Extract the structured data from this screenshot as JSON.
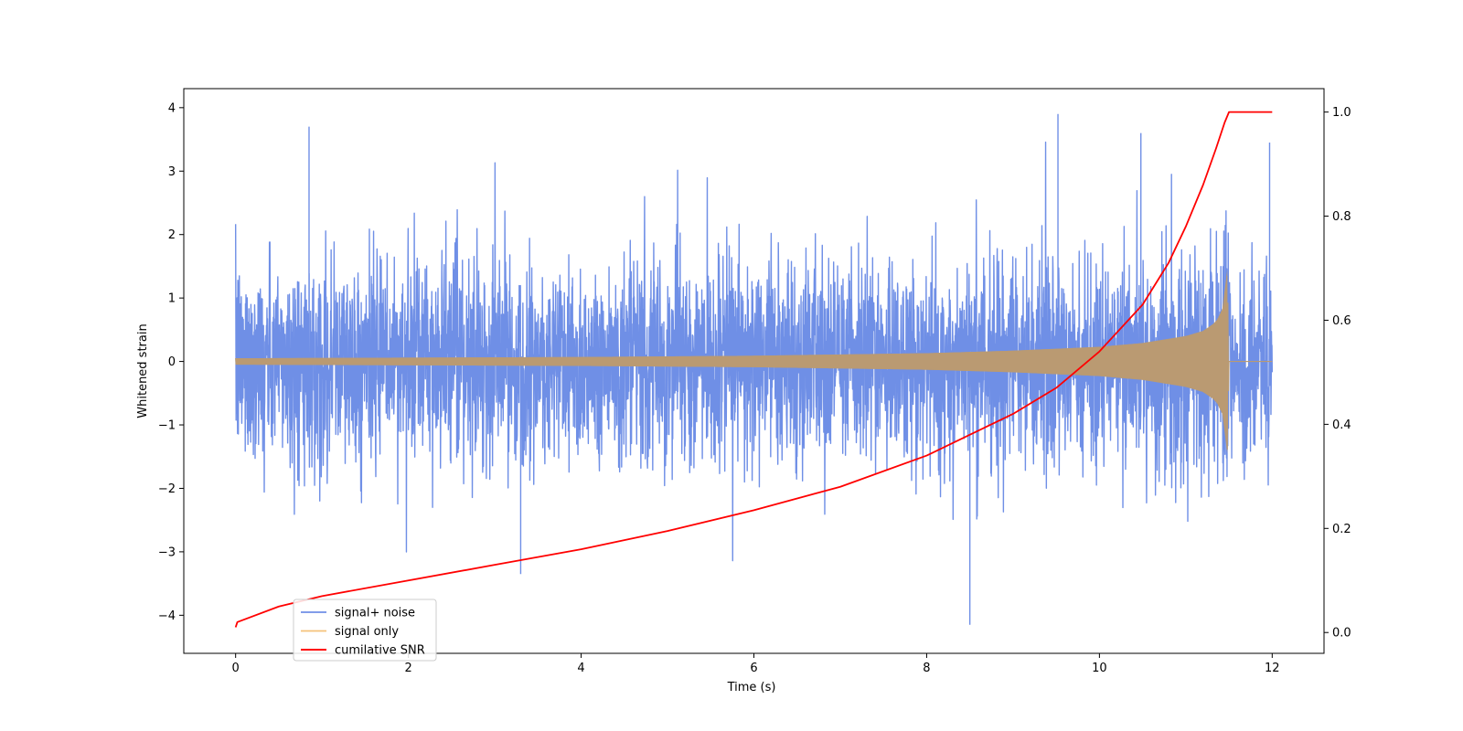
{
  "chart_data": {
    "type": "line",
    "xlabel": "Time (s)",
    "ylabel": "Whitened strain",
    "y2label": "",
    "xlim": [
      -0.6,
      12.6
    ],
    "ylim": [
      -4.6,
      4.3
    ],
    "y2lim": [
      -0.04,
      1.045
    ],
    "xticks": [
      0,
      2,
      4,
      6,
      8,
      10,
      12
    ],
    "yticks": [
      -4,
      -3,
      -2,
      -1,
      0,
      1,
      2,
      3,
      4
    ],
    "y2ticks": [
      0.0,
      0.2,
      0.4,
      0.6,
      0.8,
      1.0
    ],
    "xtick_labels": [
      "0",
      "2",
      "4",
      "6",
      "8",
      "10",
      "12"
    ],
    "ytick_labels": [
      "−4",
      "−3",
      "−2",
      "−1",
      "0",
      "1",
      "2",
      "3",
      "4"
    ],
    "y2tick_labels": [
      "0.0",
      "0.2",
      "0.4",
      "0.6",
      "0.8",
      "1.0"
    ],
    "grid": false,
    "legend_position": "lower-left",
    "series": [
      {
        "name": "signal+ noise",
        "axis": "left",
        "color": "#6f8fe6",
        "description_samples": "approx. unit-variance whitened noise spanning 0 to 12 s",
        "noise_sigma": 1.0,
        "peaks": [
          {
            "x": 0.85,
            "y": 3.7
          },
          {
            "x": 9.52,
            "y": 3.9
          },
          {
            "x": 8.5,
            "y": -4.15
          },
          {
            "x": 3.3,
            "y": -3.35
          },
          {
            "x": 10.48,
            "y": 3.6
          },
          {
            "x": 11.97,
            "y": 3.45
          }
        ]
      },
      {
        "name": "signal only",
        "axis": "left",
        "color": "#f5c27a",
        "envelope_x": [
          0,
          2,
          4,
          6,
          8,
          9,
          10,
          10.5,
          11,
          11.2,
          11.35,
          11.45,
          11.48,
          11.5,
          12
        ],
        "envelope_y": [
          0.05,
          0.06,
          0.07,
          0.09,
          0.13,
          0.17,
          0.23,
          0.29,
          0.4,
          0.48,
          0.62,
          0.9,
          1.45,
          0.0,
          0.0
        ]
      },
      {
        "name": "cumilative SNR",
        "axis": "right",
        "color": "#ff0000",
        "x": [
          0,
          0.02,
          0.5,
          1,
          2,
          3,
          4,
          5,
          6,
          7,
          8,
          9,
          9.5,
          10,
          10.5,
          10.8,
          11,
          11.2,
          11.35,
          11.45,
          11.5,
          12
        ],
        "y": [
          0.01,
          0.02,
          0.05,
          0.07,
          0.1,
          0.13,
          0.16,
          0.195,
          0.235,
          0.28,
          0.34,
          0.42,
          0.47,
          0.54,
          0.63,
          0.71,
          0.78,
          0.86,
          0.93,
          0.98,
          1.0,
          1.0
        ]
      }
    ]
  }
}
